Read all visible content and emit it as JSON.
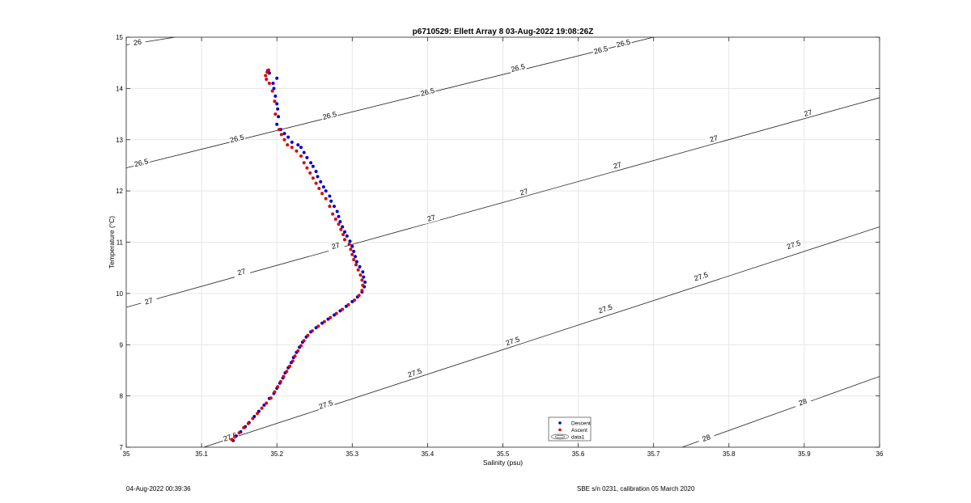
{
  "chart_data": {
    "type": "scatter",
    "title": "p6710529: Ellett Array 8 03-Aug-2022 19:08:26Z",
    "xlabel": "Salinity (psu)",
    "ylabel": "Temperature (°C)",
    "xlim": [
      35,
      36
    ],
    "ylim": [
      7,
      15
    ],
    "xticks": [
      35,
      35.1,
      35.2,
      35.3,
      35.4,
      35.5,
      35.6,
      35.7,
      35.8,
      35.9,
      36
    ],
    "xtick_labels": [
      "35",
      "35.1",
      "35.2",
      "35.3",
      "35.4",
      "35.5",
      "35.6",
      "35.7",
      "35.8",
      "35.9",
      "36"
    ],
    "yticks": [
      7,
      8,
      9,
      10,
      11,
      12,
      13,
      14,
      15
    ],
    "ytick_labels": [
      "7",
      "8",
      "9",
      "10",
      "11",
      "12",
      "13",
      "14",
      "15"
    ],
    "grid": true,
    "legend_position": "bottom-center",
    "legend": [
      {
        "label": "Descent",
        "color": "#0000cc",
        "marker": "dot"
      },
      {
        "label": "Ascent",
        "color": "#dd0000",
        "marker": "dot"
      },
      {
        "label": "data1",
        "color": "#000000",
        "marker": "contour"
      }
    ],
    "series": [
      {
        "name": "Descent",
        "color": "#0000cc",
        "points": [
          [
            35.142,
            7.13
          ],
          [
            35.146,
            7.22
          ],
          [
            35.152,
            7.3
          ],
          [
            35.158,
            7.4
          ],
          [
            35.163,
            7.48
          ],
          [
            35.17,
            7.6
          ],
          [
            35.176,
            7.7
          ],
          [
            35.183,
            7.82
          ],
          [
            35.19,
            7.95
          ],
          [
            35.196,
            8.05
          ],
          [
            35.2,
            8.15
          ],
          [
            35.204,
            8.25
          ],
          [
            35.208,
            8.35
          ],
          [
            35.211,
            8.45
          ],
          [
            35.215,
            8.55
          ],
          [
            35.219,
            8.65
          ],
          [
            35.222,
            8.75
          ],
          [
            35.226,
            8.85
          ],
          [
            35.23,
            8.95
          ],
          [
            35.234,
            9.05
          ],
          [
            35.239,
            9.15
          ],
          [
            35.245,
            9.25
          ],
          [
            35.252,
            9.33
          ],
          [
            35.26,
            9.42
          ],
          [
            35.268,
            9.5
          ],
          [
            35.276,
            9.58
          ],
          [
            35.284,
            9.66
          ],
          [
            35.292,
            9.75
          ],
          [
            35.3,
            9.84
          ],
          [
            35.307,
            9.93
          ],
          [
            35.313,
            10.03
          ],
          [
            35.316,
            10.13
          ],
          [
            35.317,
            10.22
          ],
          [
            35.315,
            10.32
          ],
          [
            35.314,
            10.42
          ],
          [
            35.31,
            10.52
          ],
          [
            35.306,
            10.62
          ],
          [
            35.304,
            10.72
          ],
          [
            35.302,
            10.82
          ],
          [
            35.3,
            10.92
          ],
          [
            35.297,
            11.02
          ],
          [
            35.293,
            11.12
          ],
          [
            35.29,
            11.2
          ],
          [
            35.287,
            11.3
          ],
          [
            35.284,
            11.4
          ],
          [
            35.282,
            11.5
          ],
          [
            35.28,
            11.6
          ],
          [
            35.276,
            11.7
          ],
          [
            35.272,
            11.8
          ],
          [
            35.27,
            11.9
          ],
          [
            35.265,
            12.0
          ],
          [
            35.262,
            12.08
          ],
          [
            35.258,
            12.18
          ],
          [
            35.254,
            12.28
          ],
          [
            35.252,
            12.38
          ],
          [
            35.248,
            12.48
          ],
          [
            35.245,
            12.55
          ],
          [
            35.24,
            12.65
          ],
          [
            35.236,
            12.75
          ],
          [
            35.232,
            12.85
          ],
          [
            35.228,
            12.9
          ],
          [
            35.22,
            12.95
          ],
          [
            35.215,
            13.05
          ],
          [
            35.21,
            13.12
          ],
          [
            35.205,
            13.2
          ],
          [
            35.2,
            13.3
          ],
          [
            35.202,
            13.45
          ],
          [
            35.201,
            13.6
          ],
          [
            35.2,
            13.7
          ],
          [
            35.198,
            13.85
          ],
          [
            35.196,
            14.0
          ],
          [
            35.195,
            14.1
          ],
          [
            35.2,
            14.2
          ],
          [
            35.19,
            14.3
          ],
          [
            35.188,
            14.35
          ]
        ]
      },
      {
        "name": "Ascent",
        "color": "#dd0000",
        "points": [
          [
            35.14,
            7.15
          ],
          [
            35.144,
            7.2
          ],
          [
            35.15,
            7.28
          ],
          [
            35.156,
            7.38
          ],
          [
            35.162,
            7.46
          ],
          [
            35.168,
            7.56
          ],
          [
            35.174,
            7.66
          ],
          [
            35.18,
            7.76
          ],
          [
            35.186,
            7.86
          ],
          [
            35.192,
            7.96
          ],
          [
            35.197,
            8.08
          ],
          [
            35.201,
            8.18
          ],
          [
            35.205,
            8.28
          ],
          [
            35.209,
            8.38
          ],
          [
            35.213,
            8.48
          ],
          [
            35.217,
            8.58
          ],
          [
            35.221,
            8.68
          ],
          [
            35.224,
            8.78
          ],
          [
            35.228,
            8.88
          ],
          [
            35.232,
            8.98
          ],
          [
            35.236,
            9.08
          ],
          [
            35.241,
            9.18
          ],
          [
            35.247,
            9.27
          ],
          [
            35.255,
            9.36
          ],
          [
            35.263,
            9.45
          ],
          [
            35.271,
            9.53
          ],
          [
            35.279,
            9.61
          ],
          [
            35.287,
            9.69
          ],
          [
            35.295,
            9.78
          ],
          [
            35.303,
            9.87
          ],
          [
            35.309,
            9.96
          ],
          [
            35.313,
            10.06
          ],
          [
            35.314,
            10.16
          ],
          [
            35.313,
            10.26
          ],
          [
            35.311,
            10.36
          ],
          [
            35.308,
            10.46
          ],
          [
            35.305,
            10.56
          ],
          [
            35.302,
            10.66
          ],
          [
            35.3,
            10.76
          ],
          [
            35.298,
            10.86
          ],
          [
            35.296,
            10.96
          ],
          [
            35.29,
            11.05
          ],
          [
            35.288,
            11.15
          ],
          [
            35.285,
            11.25
          ],
          [
            35.282,
            11.35
          ],
          [
            35.278,
            11.45
          ],
          [
            35.274,
            11.55
          ],
          [
            35.27,
            11.7
          ],
          [
            35.265,
            11.85
          ],
          [
            35.26,
            11.95
          ],
          [
            35.256,
            12.05
          ],
          [
            35.252,
            12.15
          ],
          [
            35.248,
            12.25
          ],
          [
            35.244,
            12.35
          ],
          [
            35.24,
            12.45
          ],
          [
            35.236,
            12.55
          ],
          [
            35.232,
            12.68
          ],
          [
            35.226,
            12.78
          ],
          [
            35.22,
            12.85
          ],
          [
            35.214,
            12.9
          ],
          [
            35.21,
            13.0
          ],
          [
            35.206,
            13.1
          ],
          [
            35.203,
            13.2
          ],
          [
            35.198,
            13.5
          ],
          [
            35.197,
            13.75
          ],
          [
            35.194,
            13.95
          ],
          [
            35.19,
            14.1
          ],
          [
            35.186,
            14.18
          ],
          [
            35.185,
            14.25
          ],
          [
            35.187,
            14.32
          ],
          [
            35.189,
            14.36
          ]
        ]
      }
    ],
    "contours": [
      {
        "label": "26",
        "lines": [
          [
            [
              35.0,
              14.85
            ],
            [
              35.065,
              15.0
            ]
          ]
        ],
        "label_positions": [
          [
            35.015,
            14.9
          ]
        ]
      },
      {
        "label": "26.5",
        "lines": [
          [
            [
              35.0,
              12.45
            ],
            [
              35.7,
              15.0
            ]
          ]
        ],
        "label_positions": [
          [
            35.02,
            12.55
          ],
          [
            35.147,
            13.02
          ],
          [
            35.27,
            13.47
          ],
          [
            35.4,
            13.93
          ],
          [
            35.52,
            14.4
          ],
          [
            35.63,
            14.75
          ],
          [
            35.66,
            14.88
          ]
        ]
      },
      {
        "label": "27",
        "lines": [
          [
            [
              35.0,
              9.73
            ],
            [
              36.0,
              13.82
            ]
          ]
        ],
        "label_positions": [
          [
            35.03,
            9.85
          ],
          [
            35.153,
            10.42
          ],
          [
            35.278,
            10.93
          ],
          [
            35.405,
            11.47
          ],
          [
            35.528,
            11.98
          ],
          [
            35.652,
            12.5
          ],
          [
            35.78,
            13.02
          ],
          [
            35.905,
            13.52
          ]
        ]
      },
      {
        "label": "27.5",
        "lines": [
          [
            [
              35.103,
              7.0
            ],
            [
              36.0,
              11.3
            ]
          ]
        ],
        "label_positions": [
          [
            35.138,
            7.2
          ],
          [
            35.265,
            7.83
          ],
          [
            35.383,
            8.45
          ],
          [
            35.513,
            9.07
          ],
          [
            35.636,
            9.7
          ],
          [
            35.763,
            10.33
          ],
          [
            35.886,
            10.95
          ]
        ]
      },
      {
        "label": "28",
        "lines": [
          [
            [
              35.738,
              7.0
            ],
            [
              36.0,
              8.38
            ]
          ]
        ],
        "label_positions": [
          [
            35.77,
            7.18
          ],
          [
            35.898,
            7.88
          ]
        ]
      }
    ]
  },
  "footer": {
    "left": "04-Aug-2022 00:39:36",
    "right": "SBE s/n 0231, calibration 05 March 2020"
  }
}
